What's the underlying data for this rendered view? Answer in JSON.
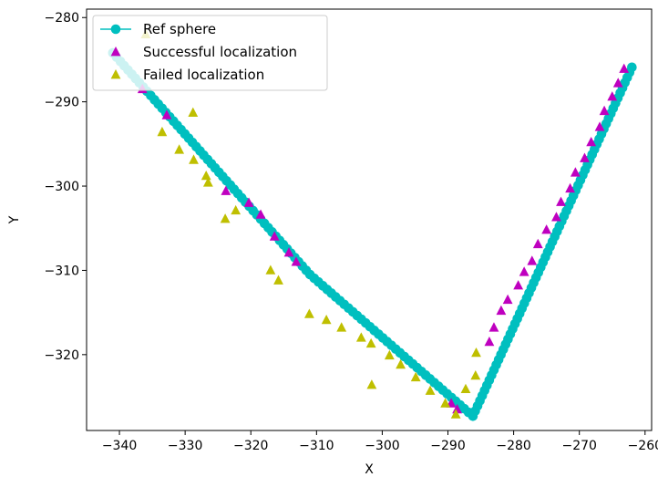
{
  "chart_data": {
    "type": "scatter",
    "title": "",
    "xlabel": "X",
    "ylabel": "Y",
    "xlim": [
      -345,
      -259
    ],
    "ylim": [
      -329,
      -279
    ],
    "y_inverted": true,
    "x_ticks": [
      -340,
      -330,
      -320,
      -310,
      -300,
      -290,
      -280,
      -270,
      -260
    ],
    "y_ticks": [
      -280,
      -290,
      -300,
      -310,
      -320
    ],
    "x_tick_labels": [
      "−340",
      "−330",
      "−320",
      "−310",
      "−300",
      "−290",
      "−280",
      "−270",
      "−260"
    ],
    "y_tick_labels": [
      "−280",
      "−290",
      "−300",
      "−310",
      "−320"
    ],
    "grid": false,
    "legend_position": "top-left",
    "series": [
      {
        "name": "Ref sphere",
        "kind": "line-marker",
        "marker": "circle",
        "color": "#00bfbf",
        "points": [
          [
            -341,
            -284.2
          ],
          [
            -311,
            -310.5
          ],
          [
            -286.2,
            -327.3
          ],
          [
            -262,
            -285.9
          ]
        ]
      },
      {
        "name": "Successful localization",
        "kind": "marker",
        "marker": "triangle",
        "color": "#bf00bf",
        "points": [
          [
            -336.5,
            -288.5
          ],
          [
            -332.8,
            -291.6
          ],
          [
            -323.8,
            -300.6
          ],
          [
            -320.3,
            -302.0
          ],
          [
            -318.5,
            -303.4
          ],
          [
            -316.4,
            -306.0
          ],
          [
            -314.2,
            -307.9
          ],
          [
            -313.1,
            -309.0
          ],
          [
            -289.5,
            -325.8
          ],
          [
            -288.6,
            -326.5
          ],
          [
            -283.7,
            -318.5
          ],
          [
            -283.0,
            -316.8
          ],
          [
            -281.9,
            -314.8
          ],
          [
            -280.9,
            -313.5
          ],
          [
            -279.3,
            -311.8
          ],
          [
            -278.4,
            -310.2
          ],
          [
            -277.2,
            -308.9
          ],
          [
            -276.3,
            -306.9
          ],
          [
            -275.0,
            -305.2
          ],
          [
            -273.5,
            -303.7
          ],
          [
            -272.8,
            -301.9
          ],
          [
            -271.4,
            -300.3
          ],
          [
            -270.6,
            -298.4
          ],
          [
            -269.2,
            -296.7
          ],
          [
            -268.2,
            -294.8
          ],
          [
            -266.9,
            -293.0
          ],
          [
            -266.2,
            -291.1
          ],
          [
            -265.0,
            -289.4
          ],
          [
            -264.1,
            -287.8
          ],
          [
            -263.2,
            -286.1
          ]
        ]
      },
      {
        "name": "Failed localization",
        "kind": "marker",
        "marker": "triangle",
        "color": "#bfbf00",
        "points": [
          [
            -336.0,
            -282.0
          ],
          [
            -333.5,
            -293.6
          ],
          [
            -330.9,
            -295.7
          ],
          [
            -328.8,
            -291.3
          ],
          [
            -328.7,
            -296.9
          ],
          [
            -326.8,
            -298.8
          ],
          [
            -326.5,
            -299.6
          ],
          [
            -323.9,
            -303.9
          ],
          [
            -322.3,
            -302.9
          ],
          [
            -317.0,
            -310.0
          ],
          [
            -315.8,
            -311.2
          ],
          [
            -311.1,
            -315.2
          ],
          [
            -308.5,
            -315.9
          ],
          [
            -306.2,
            -316.8
          ],
          [
            -303.2,
            -318.0
          ],
          [
            -301.7,
            -318.7
          ],
          [
            -301.6,
            -323.6
          ],
          [
            -298.9,
            -320.1
          ],
          [
            -297.2,
            -321.2
          ],
          [
            -294.9,
            -322.7
          ],
          [
            -292.7,
            -324.3
          ],
          [
            -290.4,
            -325.8
          ],
          [
            -288.8,
            -327.1
          ],
          [
            -287.3,
            -324.1
          ],
          [
            -285.8,
            -322.5
          ],
          [
            -285.7,
            -319.8
          ]
        ]
      }
    ]
  }
}
